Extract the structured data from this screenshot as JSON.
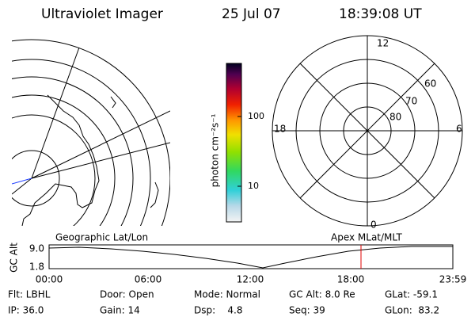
{
  "header": {
    "title": "Ultraviolet Imager",
    "date": "25 Jul 07",
    "time": "18:39:08 UT"
  },
  "colorbar": {
    "unit_label": "photon cm⁻²s⁻¹",
    "ticks": [
      "100",
      "10"
    ]
  },
  "polar": {
    "labels": {
      "top": "12",
      "right": "6",
      "left": "18",
      "bottom": "0"
    },
    "lat_labels": [
      "60",
      "70",
      "80"
    ]
  },
  "altitude_plot": {
    "left_title": "Geographic Lat/Lon",
    "right_title": "Apex MLat/MLT",
    "y_label": "GC Alt",
    "y_ticks": [
      "9.0",
      "1.8"
    ],
    "x_ticks": [
      "00:00",
      "06:00",
      "12:00",
      "18:00",
      "23:59"
    ]
  },
  "footer": {
    "rows": [
      [
        "Flt: LBHL",
        "Door: Open",
        "Mode: Normal",
        "GC Alt: 8.0 Re",
        "GLat: -59.1"
      ],
      [
        "IP: 36.0",
        "Gain: 14",
        "Dsp:    4.8",
        "Seq: 39",
        "GLon:  83.2"
      ]
    ]
  }
}
